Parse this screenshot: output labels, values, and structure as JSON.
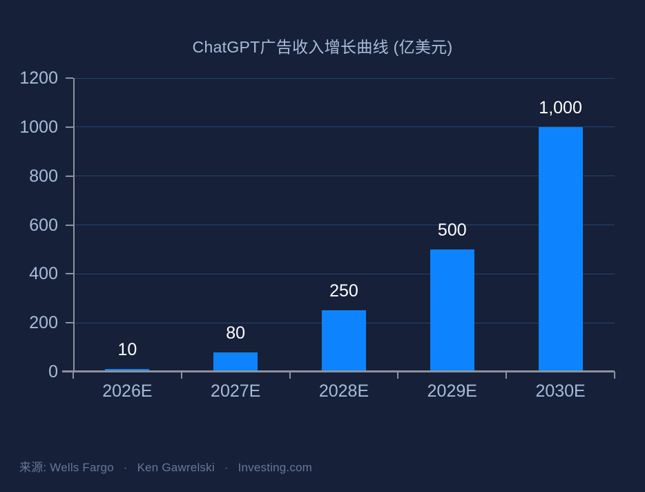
{
  "page": {
    "background": "#172039"
  },
  "header": {
    "title": "ChatGPT广告收入增长曲线 (亿美元)"
  },
  "chart_data": {
    "type": "bar",
    "title": "ChatGPT广告收入增长曲线 (亿美元)",
    "categories": [
      "2026E",
      "2027E",
      "2028E",
      "2029E",
      "2030E"
    ],
    "values": [
      10,
      80,
      250,
      500,
      1000
    ],
    "value_labels": [
      "10",
      "80",
      "250",
      "500",
      "1,000"
    ],
    "xlabel": "",
    "ylabel": "",
    "ylim": [
      0,
      1200
    ],
    "yticks": [
      0,
      200,
      400,
      600,
      800,
      1000,
      1200
    ],
    "grid": true,
    "legend": false,
    "bar_color": "#0d84fd"
  },
  "source": {
    "label": "来源:",
    "items": [
      "Wells Fargo",
      "Ken Gawrelski",
      "Investing.com"
    ],
    "separator": "·"
  },
  "colors": {
    "background": "#172039",
    "bar": "#0d84fd",
    "grid": "#23456b",
    "axis": "#8e939b",
    "tick_label": "#a6bcd8",
    "title": "#a8bdd9",
    "value_label": "#ffffff",
    "source": "#64789a"
  }
}
